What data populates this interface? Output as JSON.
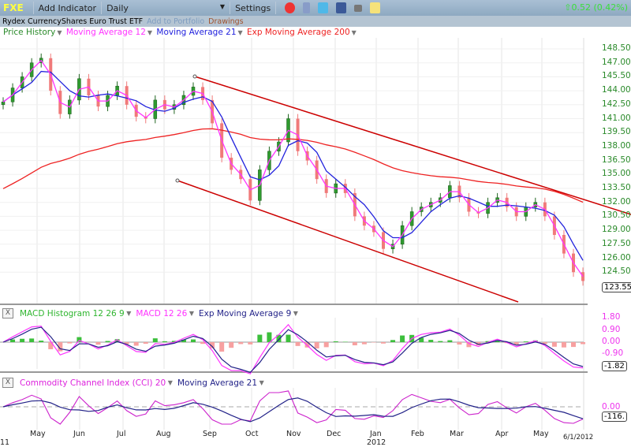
{
  "toolbar": {
    "symbol": "FXE",
    "add_indicator": "Add Indicator",
    "period": "Daily",
    "settings": "Settings",
    "change": "0.52 (0.42%)",
    "icons": [
      "alarm-clock-icon",
      "database-icon",
      "twitter-icon",
      "facebook-icon",
      "camera-icon",
      "sticky-note-icon"
    ]
  },
  "subbar": {
    "name": "Rydex CurrencyShares Euro Trust ETF",
    "add_portfolio": "Add to Portfolio",
    "drawings": "Drawings"
  },
  "legend": {
    "price": "Price History",
    "ma12": "Moving Average 12",
    "ma21": "Moving Average 21",
    "ema200": "Exp Moving Average 200"
  },
  "macd_panel": {
    "hist": "MACD Histogram 12 26 9",
    "macd": "MACD 12 26",
    "ema": "Exp Moving Average 9",
    "ticks": [
      "1.80",
      "0.90",
      "0.00",
      "-0.90"
    ],
    "last": "-1.82"
  },
  "cci_panel": {
    "cci": "Commodity Channel Index (CCI) 20",
    "ma": "Moving Average 21",
    "ticks": [
      "0.00"
    ],
    "last": "-116."
  },
  "colors": {
    "up": "#2f9a2f",
    "down": "#f07a7a",
    "ma12": "#ff33ff",
    "ma21": "#2222dd",
    "ema200": "#ee2222",
    "trend": "#cc0000",
    "axis": "#2a8a2a",
    "macd_axis": "#ee33ee"
  },
  "chart_data": {
    "type": "candlestick",
    "ylim": [
      123,
      148.5
    ],
    "y_ticks": [
      "148.50",
      "147.00",
      "145.50",
      "144.00",
      "142.50",
      "141.00",
      "139.50",
      "138.00",
      "136.50",
      "135.00",
      "133.50",
      "132.00",
      "130.50",
      "129.00",
      "127.50",
      "126.00",
      "124.50"
    ],
    "last_price": "123.55",
    "x_ticks": [
      "11",
      "May",
      "Jun",
      "Jul",
      "Aug",
      "Sep",
      "Oct",
      "Nov",
      "Dec",
      "Jan",
      "Feb",
      "Mar",
      "Apr",
      "May",
      "6/1/2012"
    ],
    "x_year": "2012",
    "weekly_closes": [
      142.8,
      144.3,
      145.5,
      147.0,
      147.5,
      144.0,
      141.5,
      143.0,
      145.3,
      143.5,
      142.3,
      143.5,
      144.5,
      142.5,
      141.2,
      141.0,
      143.0,
      142.0,
      142.5,
      143.5,
      144.4,
      143.0,
      140.5,
      136.8,
      135.5,
      134.5,
      132.2,
      135.5,
      137.5,
      138.5,
      141.0,
      137.5,
      136.5,
      134.5,
      133.0,
      134.0,
      133.0,
      130.5,
      129.5,
      128.8,
      127.0,
      127.5,
      129.5,
      131.0,
      131.5,
      132.0,
      132.5,
      133.8,
      132.5,
      131.0,
      130.8,
      132.0,
      132.5,
      131.5,
      130.5,
      131.5,
      132.0,
      130.5,
      128.5,
      126.5,
      124.5,
      123.55
    ]
  }
}
